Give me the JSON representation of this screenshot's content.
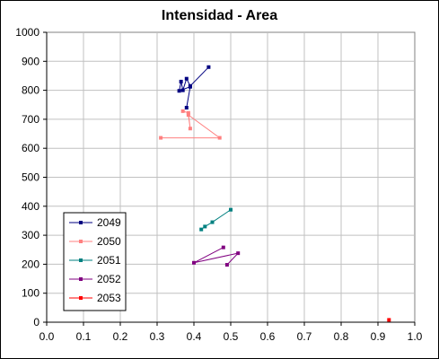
{
  "chart_data": {
    "type": "scatter",
    "title": "Intensidad - Area",
    "xlabel": "",
    "ylabel": "",
    "xlim": [
      0,
      1
    ],
    "ylim": [
      0,
      1000
    ],
    "x_ticks": [
      "0.0",
      "0.1",
      "0.2",
      "0.3",
      "0.4",
      "0.5",
      "0.6",
      "0.7",
      "0.8",
      "0.9",
      "1.0"
    ],
    "y_ticks": [
      "0",
      "100",
      "200",
      "300",
      "400",
      "500",
      "600",
      "700",
      "800",
      "900",
      "1000"
    ],
    "grid": true,
    "legend_position": "bottom-left",
    "series": [
      {
        "name": "2049",
        "color": "#000080",
        "points": [
          [
            0.44,
            880
          ],
          [
            0.39,
            815
          ],
          [
            0.38,
            840
          ],
          [
            0.37,
            800
          ],
          [
            0.365,
            830
          ],
          [
            0.36,
            798
          ],
          [
            0.39,
            812
          ],
          [
            0.38,
            740
          ]
        ]
      },
      {
        "name": "2050",
        "color": "#FF8080",
        "points": [
          [
            0.37,
            728
          ],
          [
            0.385,
            722
          ],
          [
            0.39,
            668
          ],
          [
            0.385,
            715
          ],
          [
            0.47,
            636
          ],
          [
            0.31,
            636
          ]
        ]
      },
      {
        "name": "2051",
        "color": "#008080",
        "points": [
          [
            0.42,
            320
          ],
          [
            0.43,
            330
          ],
          [
            0.45,
            345
          ],
          [
            0.5,
            388
          ]
        ]
      },
      {
        "name": "2052",
        "color": "#800080",
        "points": [
          [
            0.48,
            258
          ],
          [
            0.4,
            205
          ],
          [
            0.52,
            238
          ],
          [
            0.49,
            198
          ]
        ]
      },
      {
        "name": "2053",
        "color": "#FF0000",
        "points": [
          [
            0.93,
            8
          ]
        ]
      }
    ]
  }
}
